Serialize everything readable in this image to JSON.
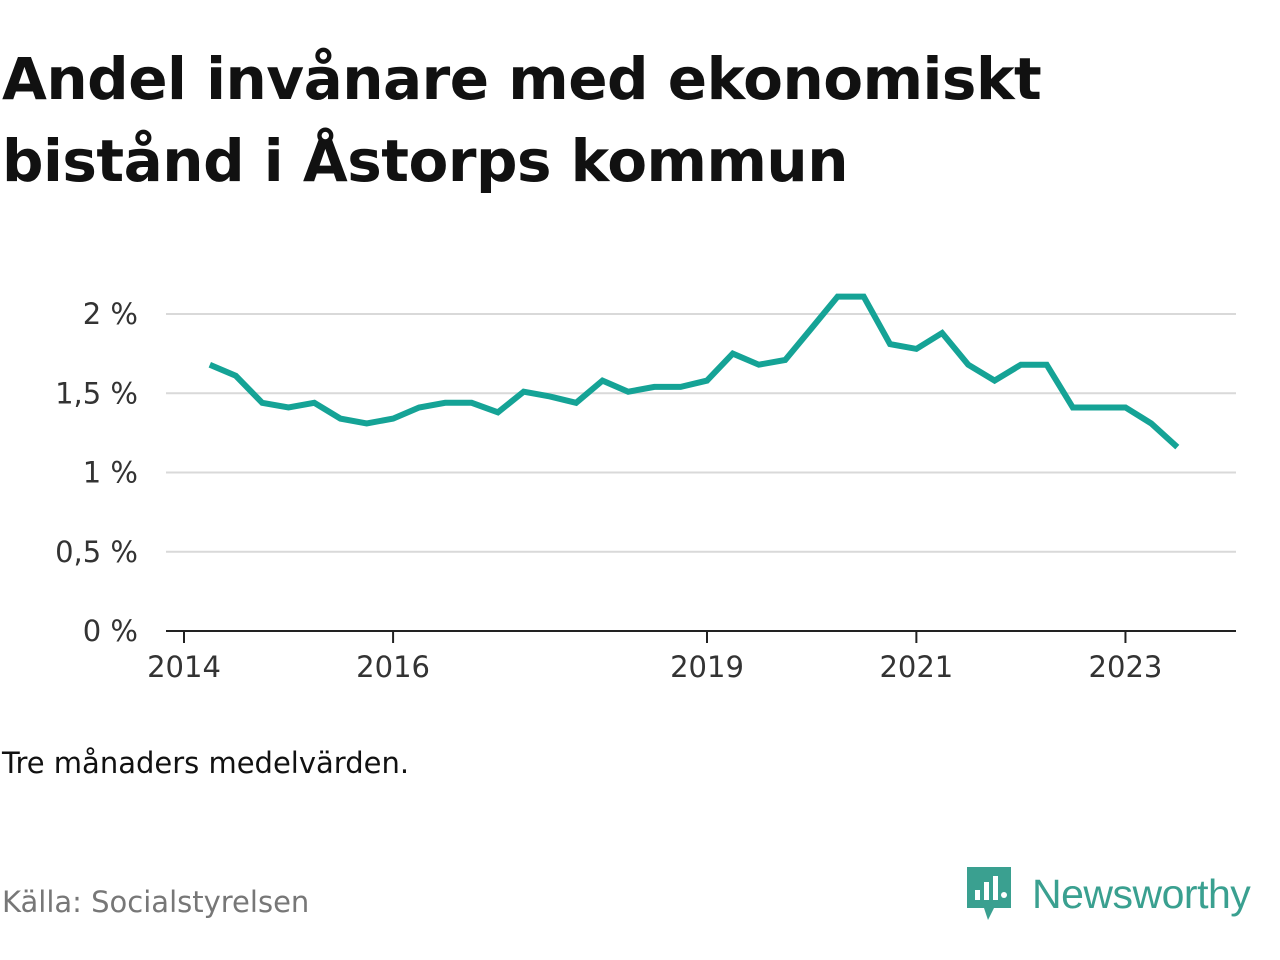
{
  "title": "Andel invånare med ekonomiskt bistånd i Åstorps kommun",
  "note": "Tre månaders medelvärden.",
  "source": "Källa: Socialstyrelsen",
  "brand": {
    "name": "Newsworthy",
    "icon": "newsworthy-logo-icon",
    "color": "#3aa090"
  },
  "colors": {
    "line": "#15a396",
    "grid": "#d9d9d9",
    "axis": "#222222"
  },
  "chart_data": {
    "type": "line",
    "title": "Andel invånare med ekonomiskt bistånd i Åstorps kommun",
    "xlabel": "",
    "ylabel": "",
    "xlim": [
      "2014-01-01",
      "2024-01-01"
    ],
    "ylim": [
      0,
      2.2
    ],
    "y_ticks": [
      0,
      0.5,
      1,
      1.5,
      2
    ],
    "y_tick_labels": [
      "0 %",
      "0,5 %",
      "1 %",
      "1,5 %",
      "2 %"
    ],
    "x_ticks": [
      "2014-01-01",
      "2016-01-01",
      "2019-01-01",
      "2021-01-01",
      "2023-01-01"
    ],
    "x_tick_labels": [
      "2014",
      "2016",
      "2019",
      "2021",
      "2023"
    ],
    "grid": true,
    "legend": "none",
    "series": [
      {
        "x": [
          "2014-04-01",
          "2014-07-01",
          "2014-10-01",
          "2015-01-01",
          "2015-04-01",
          "2015-07-01",
          "2015-10-01",
          "2016-01-01",
          "2016-04-01",
          "2016-07-01",
          "2016-10-01",
          "2017-01-01",
          "2017-04-01",
          "2017-07-01",
          "2017-10-01",
          "2018-01-01",
          "2018-04-01",
          "2018-07-01",
          "2018-10-01",
          "2019-01-01",
          "2019-04-01",
          "2019-07-01",
          "2019-10-01",
          "2020-01-01",
          "2020-04-01",
          "2020-07-01",
          "2020-10-01",
          "2021-01-01",
          "2021-04-01",
          "2021-07-01",
          "2021-10-01",
          "2022-01-01",
          "2022-04-01",
          "2022-07-01",
          "2022-10-01",
          "2023-01-01",
          "2023-04-01",
          "2023-07-01"
        ],
        "values": [
          1.68,
          1.61,
          1.44,
          1.41,
          1.44,
          1.34,
          1.31,
          1.34,
          1.41,
          1.44,
          1.44,
          1.38,
          1.51,
          1.48,
          1.44,
          1.58,
          1.51,
          1.54,
          1.54,
          1.58,
          1.75,
          1.68,
          1.71,
          1.91,
          2.11,
          2.11,
          1.81,
          1.78,
          1.88,
          1.68,
          1.58,
          1.68,
          1.68,
          1.41,
          1.41,
          1.41,
          1.31,
          1.16
        ]
      }
    ]
  }
}
